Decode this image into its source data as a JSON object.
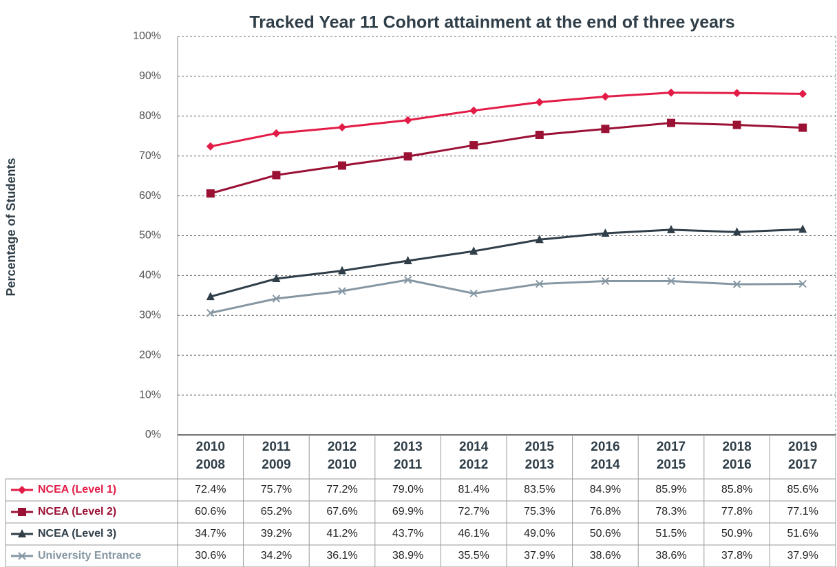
{
  "chart_data": {
    "type": "line",
    "title": "Tracked Year 11 Cohort attainment at the end of three years",
    "y_label": "Percentage of Students",
    "categories": [
      [
        "2010",
        "2008"
      ],
      [
        "2011",
        "2009"
      ],
      [
        "2012",
        "2010"
      ],
      [
        "2013",
        "2011"
      ],
      [
        "2014",
        "2012"
      ],
      [
        "2015",
        "2013"
      ],
      [
        "2016",
        "2014"
      ],
      [
        "2017",
        "2015"
      ],
      [
        "2018",
        "2016"
      ],
      [
        "2019",
        "2017"
      ]
    ],
    "ylim": [
      0,
      100
    ],
    "yticks": [
      {
        "value": 0,
        "label": "0%"
      },
      {
        "value": 10,
        "label": "10%"
      },
      {
        "value": 20,
        "label": "20%"
      },
      {
        "value": 30,
        "label": "30%"
      },
      {
        "value": 40,
        "label": "40%"
      },
      {
        "value": 50,
        "label": "50%"
      },
      {
        "value": 60,
        "label": "60%"
      },
      {
        "value": 70,
        "label": "70%"
      },
      {
        "value": 80,
        "label": "80%"
      },
      {
        "value": 90,
        "label": "90%"
      },
      {
        "value": 100,
        "label": "100%"
      }
    ],
    "grid": true,
    "series": [
      {
        "name": "NCEA (Level 1)",
        "color": "#e31c47",
        "marker": "diamond",
        "values": [
          72.4,
          75.7,
          77.2,
          79.0,
          81.4,
          83.5,
          84.9,
          85.9,
          85.8,
          85.6
        ],
        "value_labels": [
          "72.4%",
          "75.7%",
          "77.2%",
          "79.0%",
          "81.4%",
          "83.5%",
          "84.9%",
          "85.9%",
          "85.8%",
          "85.6%"
        ]
      },
      {
        "name": "NCEA (Level 2)",
        "color": "#9b1134",
        "marker": "square",
        "values": [
          60.6,
          65.2,
          67.6,
          69.9,
          72.7,
          75.3,
          76.8,
          78.3,
          77.8,
          77.1
        ],
        "value_labels": [
          "60.6%",
          "65.2%",
          "67.6%",
          "69.9%",
          "72.7%",
          "75.3%",
          "76.8%",
          "78.3%",
          "77.8%",
          "77.1%"
        ]
      },
      {
        "name": "NCEA (Level 3)",
        "color": "#2f3e48",
        "marker": "triangle",
        "values": [
          34.7,
          39.2,
          41.2,
          43.7,
          46.1,
          49.0,
          50.6,
          51.5,
          50.9,
          51.6
        ],
        "value_labels": [
          "34.7%",
          "39.2%",
          "41.2%",
          "43.7%",
          "46.1%",
          "49.0%",
          "50.6%",
          "51.5%",
          "50.9%",
          "51.6%"
        ]
      },
      {
        "name": "University Entrance",
        "color": "#8597a3",
        "marker": "x",
        "values": [
          30.6,
          34.2,
          36.1,
          38.9,
          35.5,
          37.9,
          38.6,
          38.6,
          37.8,
          37.9
        ],
        "value_labels": [
          "30.6%",
          "34.2%",
          "36.1%",
          "38.9%",
          "35.5%",
          "37.9%",
          "38.6%",
          "38.6%",
          "37.8%",
          "37.9%"
        ]
      }
    ]
  }
}
